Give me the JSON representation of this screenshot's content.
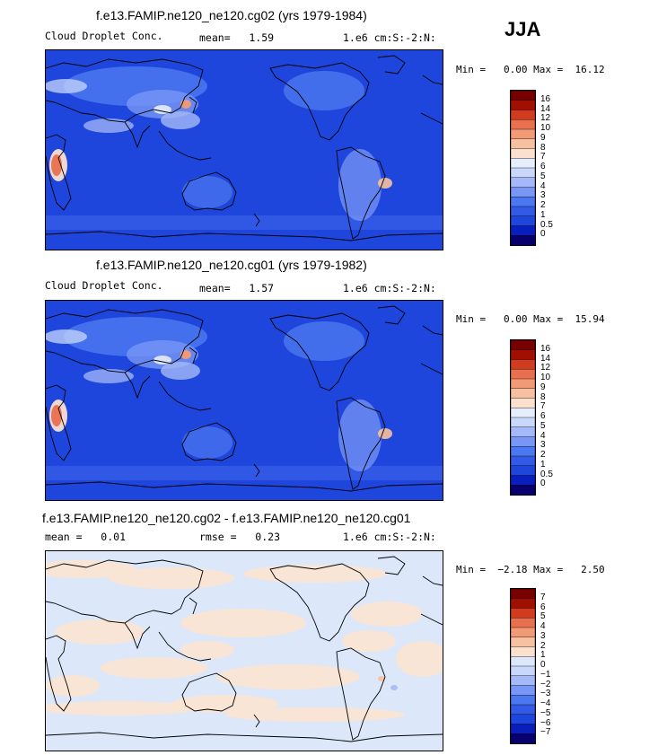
{
  "season": "JJA",
  "panels": [
    {
      "title": "f.e13.FAMIP.ne120_ne120.cg02 (yrs 1979-1984)",
      "left_text": "Cloud Droplet Conc.",
      "mean_text": "mean=   1.59",
      "units_text": "1.e6 cm:S:-2:N:",
      "minmax_text": "Min =   0.00 Max =  16.12",
      "colorbar_labels": [
        "16",
        "14",
        "12",
        "10",
        "9",
        "8",
        "7",
        "6",
        "5",
        "4",
        "3",
        "2",
        "1",
        "0.5",
        "0"
      ]
    },
    {
      "title": "f.e13.FAMIP.ne120_ne120.cg01 (yrs 1979-1982)",
      "left_text": "Cloud Droplet Conc.",
      "mean_text": "mean=   1.57",
      "units_text": "1.e6 cm:S:-2:N:",
      "minmax_text": "Min =   0.00 Max =  15.94",
      "colorbar_labels": [
        "16",
        "14",
        "12",
        "10",
        "9",
        "8",
        "7",
        "6",
        "5",
        "4",
        "3",
        "2",
        "1",
        "0.5",
        "0"
      ]
    },
    {
      "title": "f.e13.FAMIP.ne120_ne120.cg02 - f.e13.FAMIP.ne120_ne120.cg01",
      "left_text": "mean =   0.01",
      "mean_text": "rmse =   0.23",
      "units_text": "1.e6 cm:S:-2:N:",
      "minmax_text": "Min =  −2.18 Max =   2.50",
      "colorbar_labels": [
        "7",
        "6",
        "5",
        "4",
        "3",
        "2",
        "1",
        "0",
        "−1",
        "−2",
        "−3",
        "−4",
        "−5",
        "−6",
        "−7"
      ]
    }
  ],
  "colors": {
    "abs_scale": [
      "#08006e",
      "#0a1ebe",
      "#1e46dc",
      "#325ae6",
      "#4b78f0",
      "#7896f5",
      "#a5b9f8",
      "#c8d7fa",
      "#e6eefc",
      "#fbe0cd",
      "#f7c0a0",
      "#f29a75",
      "#e8704f",
      "#d23c1e",
      "#a00f00",
      "#780000"
    ],
    "diff_scale": [
      "#08006e",
      "#0a1ebe",
      "#1e46dc",
      "#325ae6",
      "#4b78f0",
      "#7896f5",
      "#a5b9f8",
      "#c8d7fa",
      "#dce8fa",
      "#fbe0cd",
      "#f7c0a0",
      "#f29a75",
      "#e8704f",
      "#d23c1e",
      "#a00f00",
      "#780000"
    ],
    "abs_ocean": "#1e46dc",
    "diff_ocean": "#dce8fa",
    "diff_pos": "#fbe4d2"
  },
  "chart_data": [
    {
      "type": "heatmap",
      "title": "f.e13.FAMIP.ne120_ne120.cg02 (yrs 1979-1984)",
      "variable": "Cloud Droplet Conc.",
      "units": "1.e6 cm:S:-2:N:",
      "season": "JJA",
      "mean": 1.59,
      "min": 0.0,
      "max": 16.12,
      "levels": [
        0,
        0.5,
        1,
        2,
        3,
        4,
        5,
        6,
        7,
        8,
        9,
        10,
        12,
        14,
        16
      ]
    },
    {
      "type": "heatmap",
      "title": "f.e13.FAMIP.ne120_ne120.cg01 (yrs 1979-1982)",
      "variable": "Cloud Droplet Conc.",
      "units": "1.e6 cm:S:-2:N:",
      "season": "JJA",
      "mean": 1.57,
      "min": 0.0,
      "max": 15.94,
      "levels": [
        0,
        0.5,
        1,
        2,
        3,
        4,
        5,
        6,
        7,
        8,
        9,
        10,
        12,
        14,
        16
      ]
    },
    {
      "type": "heatmap",
      "title": "f.e13.FAMIP.ne120_ne120.cg02 - f.e13.FAMIP.ne120_ne120.cg01",
      "units": "1.e6 cm:S:-2:N:",
      "season": "JJA",
      "mean": 0.01,
      "rmse": 0.23,
      "min": -2.18,
      "max": 2.5,
      "levels": [
        -7,
        -6,
        -5,
        -4,
        -3,
        -2,
        -1,
        0,
        1,
        2,
        3,
        4,
        5,
        6,
        7
      ]
    }
  ]
}
